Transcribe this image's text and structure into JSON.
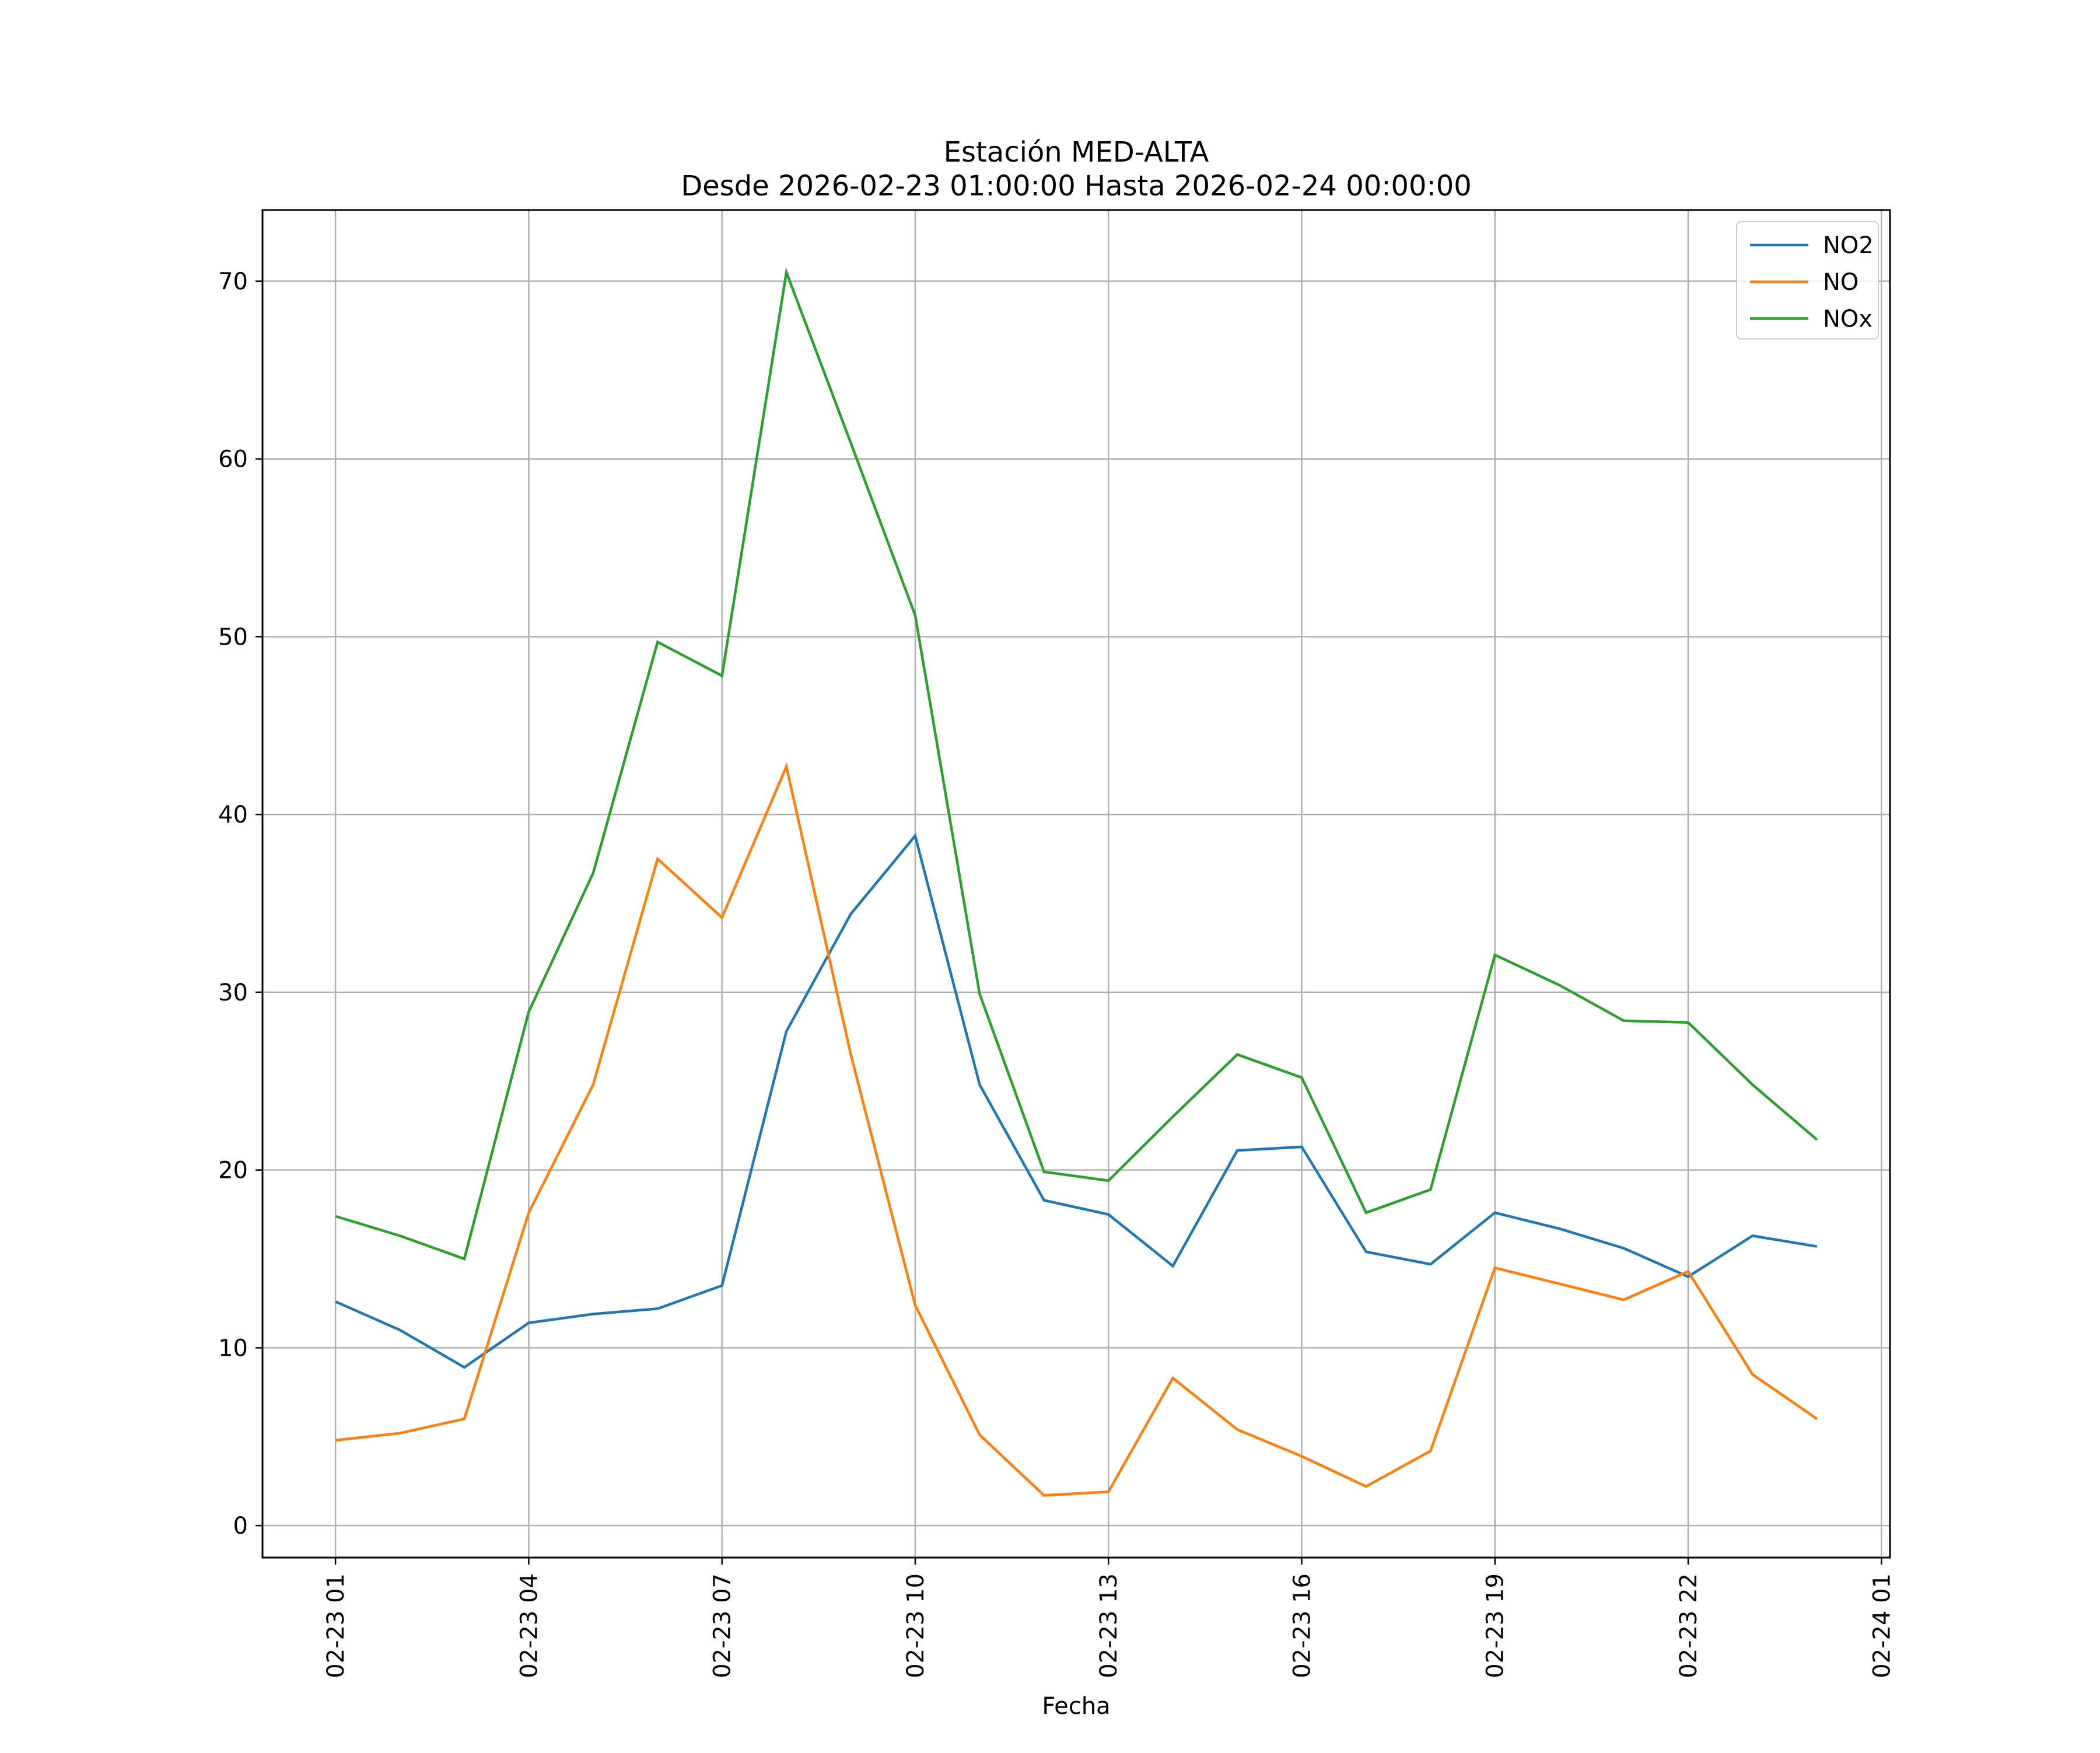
{
  "chart_data": {
    "type": "line",
    "title": "Estación MED-ALTA",
    "subtitle": "Desde 2026-02-23 01:00:00 Hasta 2026-02-24 00:00:00",
    "xlabel": "Fecha",
    "ylabel": "",
    "x": [
      "2026-02-23 01:00",
      "2026-02-23 02:00",
      "2026-02-23 03:00",
      "2026-02-23 04:00",
      "2026-02-23 05:00",
      "2026-02-23 06:00",
      "2026-02-23 07:00",
      "2026-02-23 08:00",
      "2026-02-23 09:00",
      "2026-02-23 10:00",
      "2026-02-23 11:00",
      "2026-02-23 12:00",
      "2026-02-23 13:00",
      "2026-02-23 14:00",
      "2026-02-23 15:00",
      "2026-02-23 16:00",
      "2026-02-23 17:00",
      "2026-02-23 18:00",
      "2026-02-23 19:00",
      "2026-02-23 20:00",
      "2026-02-23 21:00",
      "2026-02-23 22:00",
      "2026-02-23 23:00",
      "2026-02-24 00:00"
    ],
    "xlim": [
      "2026-02-22 23:52",
      "2026-02-24 01:08"
    ],
    "xticks": [
      {
        "x": "2026-02-23 01:00",
        "label": "02-23 01"
      },
      {
        "x": "2026-02-23 04:00",
        "label": "02-23 04"
      },
      {
        "x": "2026-02-23 07:00",
        "label": "02-23 07"
      },
      {
        "x": "2026-02-23 10:00",
        "label": "02-23 10"
      },
      {
        "x": "2026-02-23 13:00",
        "label": "02-23 13"
      },
      {
        "x": "2026-02-23 16:00",
        "label": "02-23 16"
      },
      {
        "x": "2026-02-23 19:00",
        "label": "02-23 19"
      },
      {
        "x": "2026-02-23 22:00",
        "label": "02-23 22"
      },
      {
        "x": "2026-02-24 01:00",
        "label": "02-24 01"
      }
    ],
    "ylim": [
      -1.8,
      74
    ],
    "yticks": [
      0,
      10,
      20,
      30,
      40,
      50,
      60,
      70
    ],
    "grid": true,
    "legend_position": "top-right",
    "series": [
      {
        "name": "NO2",
        "color": "#1f77b4",
        "values": [
          12.6,
          11.0,
          8.9,
          11.4,
          11.9,
          12.2,
          13.5,
          27.8,
          34.4,
          38.8,
          24.8,
          18.3,
          17.5,
          14.6,
          21.1,
          21.3,
          15.4,
          14.7,
          17.6,
          16.7,
          15.6,
          14.0,
          16.3,
          15.7
        ]
      },
      {
        "name": "NO",
        "color": "#ff7f0e",
        "values": [
          4.8,
          5.2,
          6.0,
          17.6,
          24.8,
          37.5,
          34.2,
          42.7,
          26.5,
          12.4,
          5.1,
          1.7,
          1.9,
          8.3,
          5.4,
          3.9,
          2.2,
          4.2,
          14.5,
          13.6,
          12.7,
          14.3,
          8.5,
          6.0
        ]
      },
      {
        "name": "NOx",
        "color": "#2ca02c",
        "values": [
          17.4,
          16.3,
          15.0,
          28.9,
          36.7,
          49.7,
          47.8,
          70.5,
          60.9,
          51.2,
          29.9,
          19.9,
          19.4,
          23.0,
          26.5,
          25.2,
          17.6,
          18.9,
          32.1,
          30.4,
          28.4,
          28.3,
          24.8,
          21.7
        ]
      }
    ]
  }
}
